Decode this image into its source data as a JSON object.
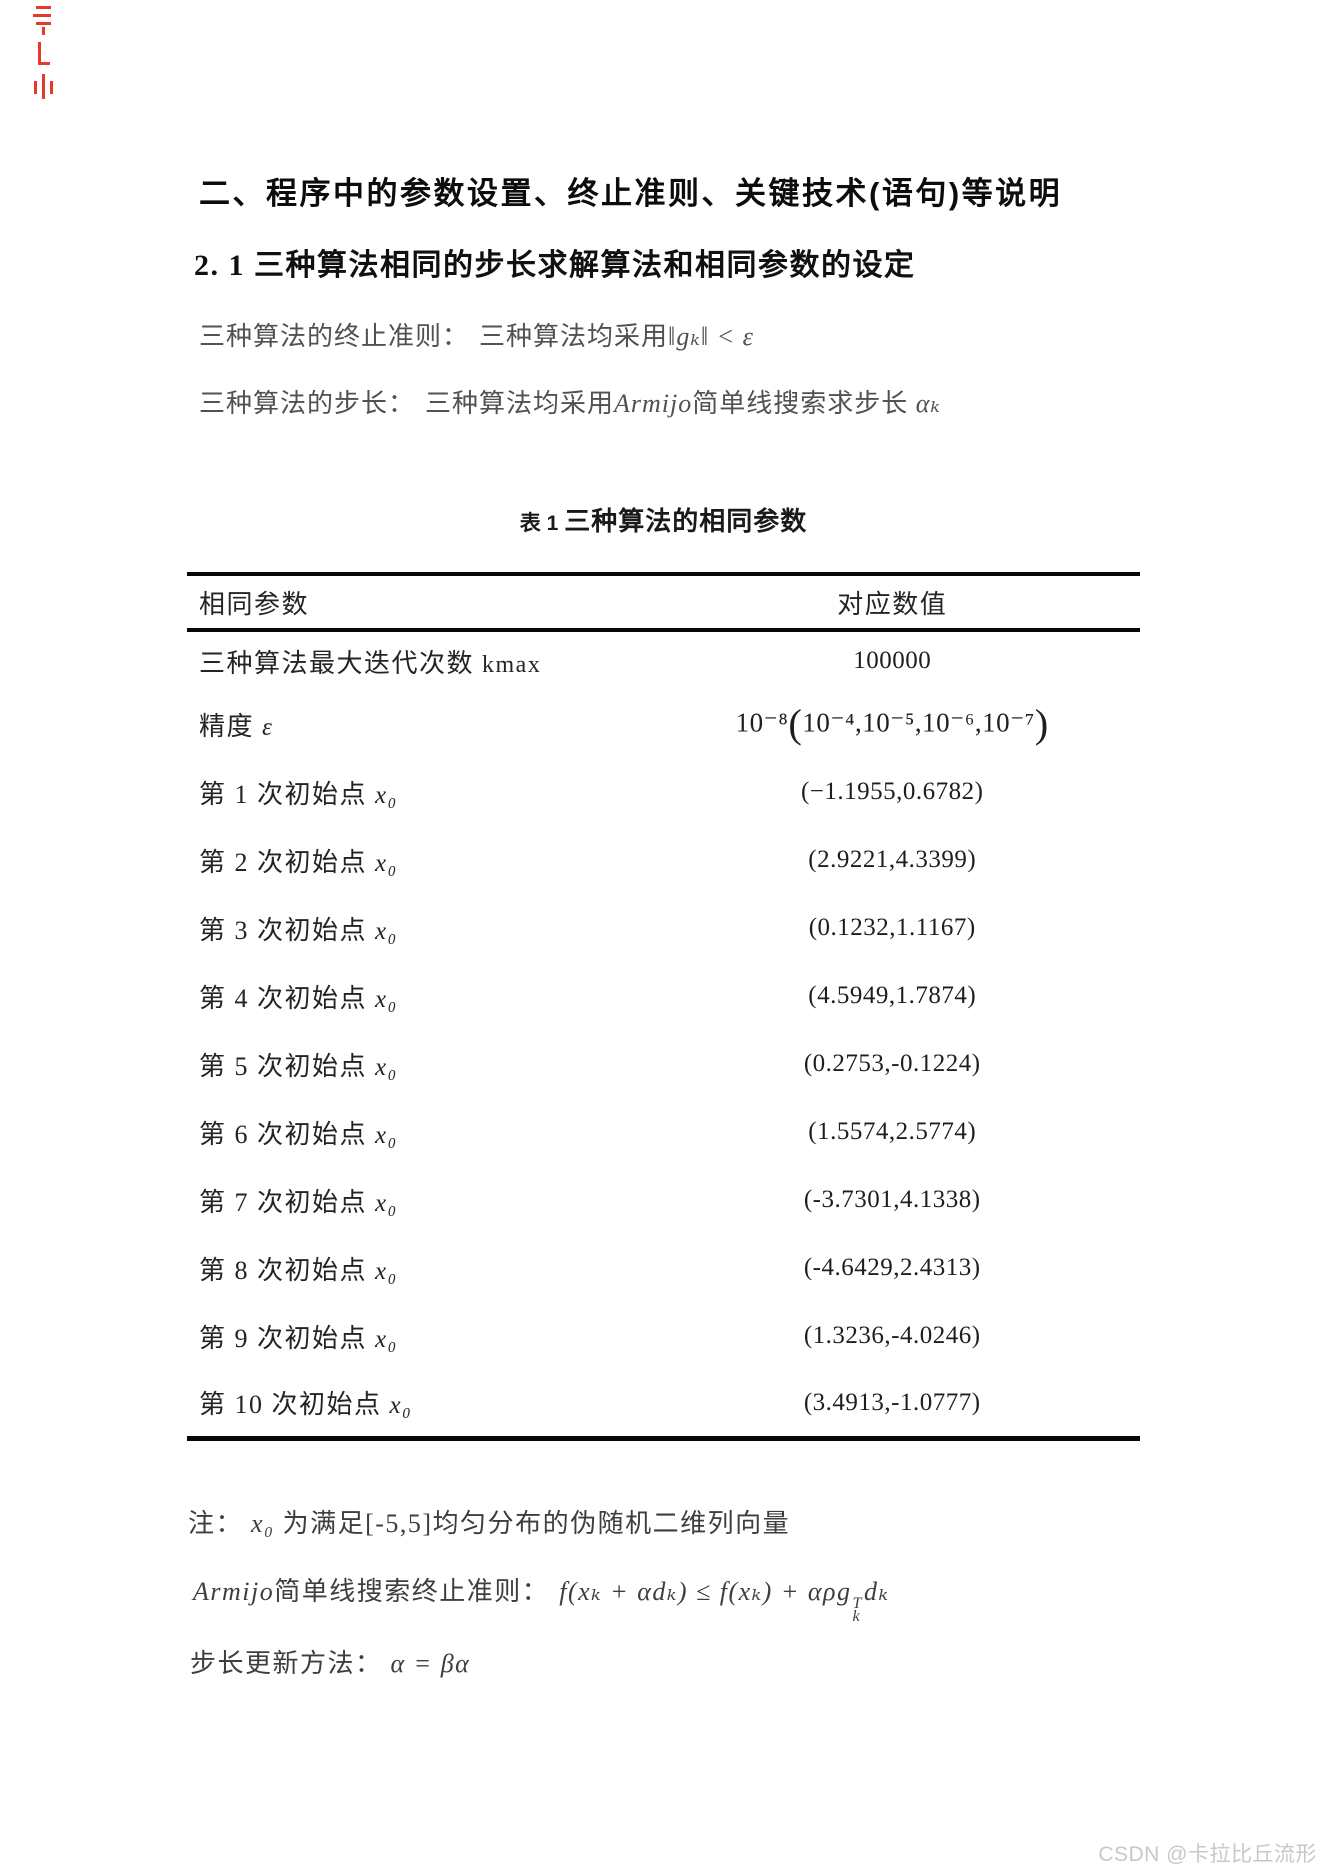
{
  "heading1": "二、程序中的参数设置、终止准则、关键技术(语句)等说明",
  "heading2": "2. 1 三种算法相同的步长求解算法和相同参数的设定",
  "paragraphs": {
    "termination": {
      "label": "三种算法的终止准则：",
      "text": "三种算法均采用",
      "math": "‖gₖ‖ < ε"
    },
    "steplength": {
      "label": "三种算法的步长：",
      "text": "三种算法均采用",
      "italic": "Armijo",
      "text2": "简单线搜索求步长 ",
      "math": "αₖ"
    }
  },
  "table": {
    "caption_prefix": "表 1",
    "caption_title": "三种算法的相同参数",
    "columns": [
      "相同参数",
      "对应数值"
    ],
    "rows": [
      {
        "label": "三种算法最大迭代次数 ",
        "var": "kmax",
        "value": "100000"
      },
      {
        "label": "精度 ",
        "var": "ε",
        "value_parts": {
          "prefix": "10⁻⁸",
          "open": "(",
          "inner": "10⁻⁴,10⁻⁵,10⁻⁶,10⁻⁷",
          "close": ")"
        }
      },
      {
        "label": "第 1 次初始点 ",
        "var": "x₀",
        "value": "(−1.1955,0.6782)"
      },
      {
        "label": "第 2 次初始点 ",
        "var": "x₀",
        "value": "(2.9221,4.3399)"
      },
      {
        "label": "第 3 次初始点 ",
        "var": "x₀",
        "value": "(0.1232,1.1167)"
      },
      {
        "label": "第 4 次初始点 ",
        "var": "x₀",
        "value": "(4.5949,1.7874)"
      },
      {
        "label": "第 5 次初始点 ",
        "var": "x₀",
        "value": "(0.2753,-0.1224)"
      },
      {
        "label": "第 6 次初始点 ",
        "var": "x₀",
        "value": "(1.5574,2.5774)"
      },
      {
        "label": "第 7 次初始点 ",
        "var": "x₀",
        "value": "(-3.7301,4.1338)"
      },
      {
        "label": "第 8 次初始点 ",
        "var": "x₀",
        "value": "(-4.6429,2.4313)"
      },
      {
        "label": "第 9 次初始点 ",
        "var": "x₀",
        "value": "(1.3236,-4.0246)"
      },
      {
        "label": "第 10 次初始点 ",
        "var": "x₀",
        "value": "(3.4913,-1.0777)"
      }
    ]
  },
  "notes": {
    "n1": {
      "prefix": "注：",
      "var": "x₀",
      "text": " 为满足[-5,5]均匀分布的伪随机二维列向量"
    },
    "n2": {
      "italic": "Armijo",
      "label": "简单线搜索终止准则：",
      "formula_a": "f(xₖ + αdₖ) ≤ f(xₖ) + αρg",
      "sup": "T",
      "sub": "k",
      "formula_b": "dₖ"
    },
    "n3": {
      "label": "步长更新方法：",
      "math": "α = βα"
    }
  },
  "watermark": "CSDN @卡拉比丘流形"
}
